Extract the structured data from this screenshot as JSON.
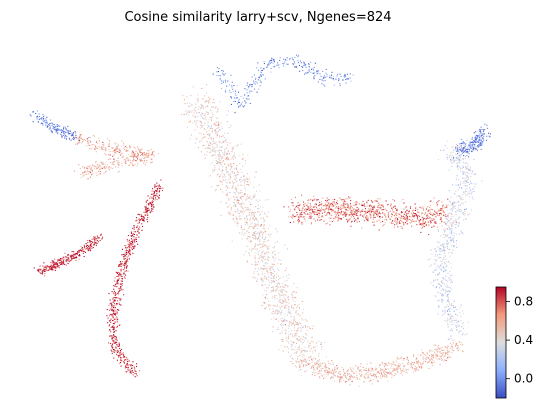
{
  "chart_data": {
    "type": "scatter",
    "title": "Cosine similarity larry+scv, Ngenes=824",
    "xlabel": "",
    "ylabel": "",
    "axes_visible": false,
    "colormap": "coolwarm",
    "colorbar": {
      "min": -0.2,
      "max": 0.95,
      "ticks": [
        {
          "value": 0.8,
          "label": "0.8"
        },
        {
          "value": 0.4,
          "label": "0.4"
        },
        {
          "value": 0.0,
          "label": "0.0"
        }
      ]
    },
    "regions": [
      {
        "name": "top-left branch tip",
        "value": -0.05
      },
      {
        "name": "upper-left arm",
        "value": 0.6
      },
      {
        "name": "left small cluster",
        "value": 0.9
      },
      {
        "name": "left elongated stream",
        "value": 0.9
      },
      {
        "name": "central diagonal band",
        "value": 0.45
      },
      {
        "name": "horizontal middle band",
        "value": 0.75
      },
      {
        "name": "right arc",
        "value": 0.3
      },
      {
        "name": "top spikes",
        "value": 0.0
      },
      {
        "name": "right edge tip",
        "value": -0.05
      },
      {
        "name": "bottom arc",
        "value": 0.55
      }
    ]
  }
}
